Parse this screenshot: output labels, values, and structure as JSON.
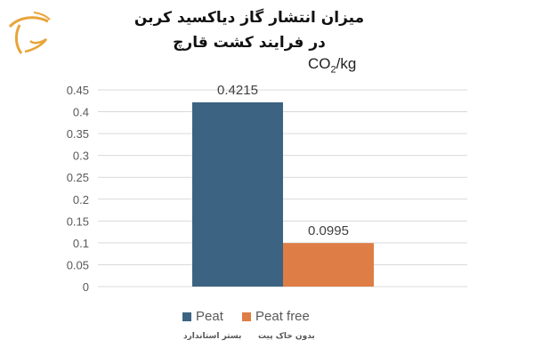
{
  "title_line1": "میزان انتشار گاز دیاکسید کربن",
  "title_line2": "در فرایند کشت قارچ",
  "unit_prefix": "CO",
  "unit_sub": "2",
  "unit_suffix": "/kg",
  "logo": {
    "icon": "stylized-orange-logo",
    "color": "#E8A43A"
  },
  "subtitles": {
    "peat": "بستر استاندارد",
    "peat_free": "بدون خاک پیت"
  },
  "chart_data": {
    "type": "bar",
    "categories": [
      ""
    ],
    "series": [
      {
        "name": "Peat",
        "values": [
          0.4215
        ],
        "color": "#3C6482"
      },
      {
        "name": "Peat free",
        "values": [
          0.0995
        ],
        "color": "#DE7D45"
      }
    ],
    "data_labels": [
      "0.4215",
      "0.0995"
    ],
    "ylim": [
      0,
      0.45
    ],
    "yticks": [
      "0",
      "0.05",
      "0.1",
      "0.15",
      "0.2",
      "0.25",
      "0.3",
      "0.35",
      "0.4",
      "0.45"
    ],
    "grid": true,
    "legend": "bottom"
  }
}
